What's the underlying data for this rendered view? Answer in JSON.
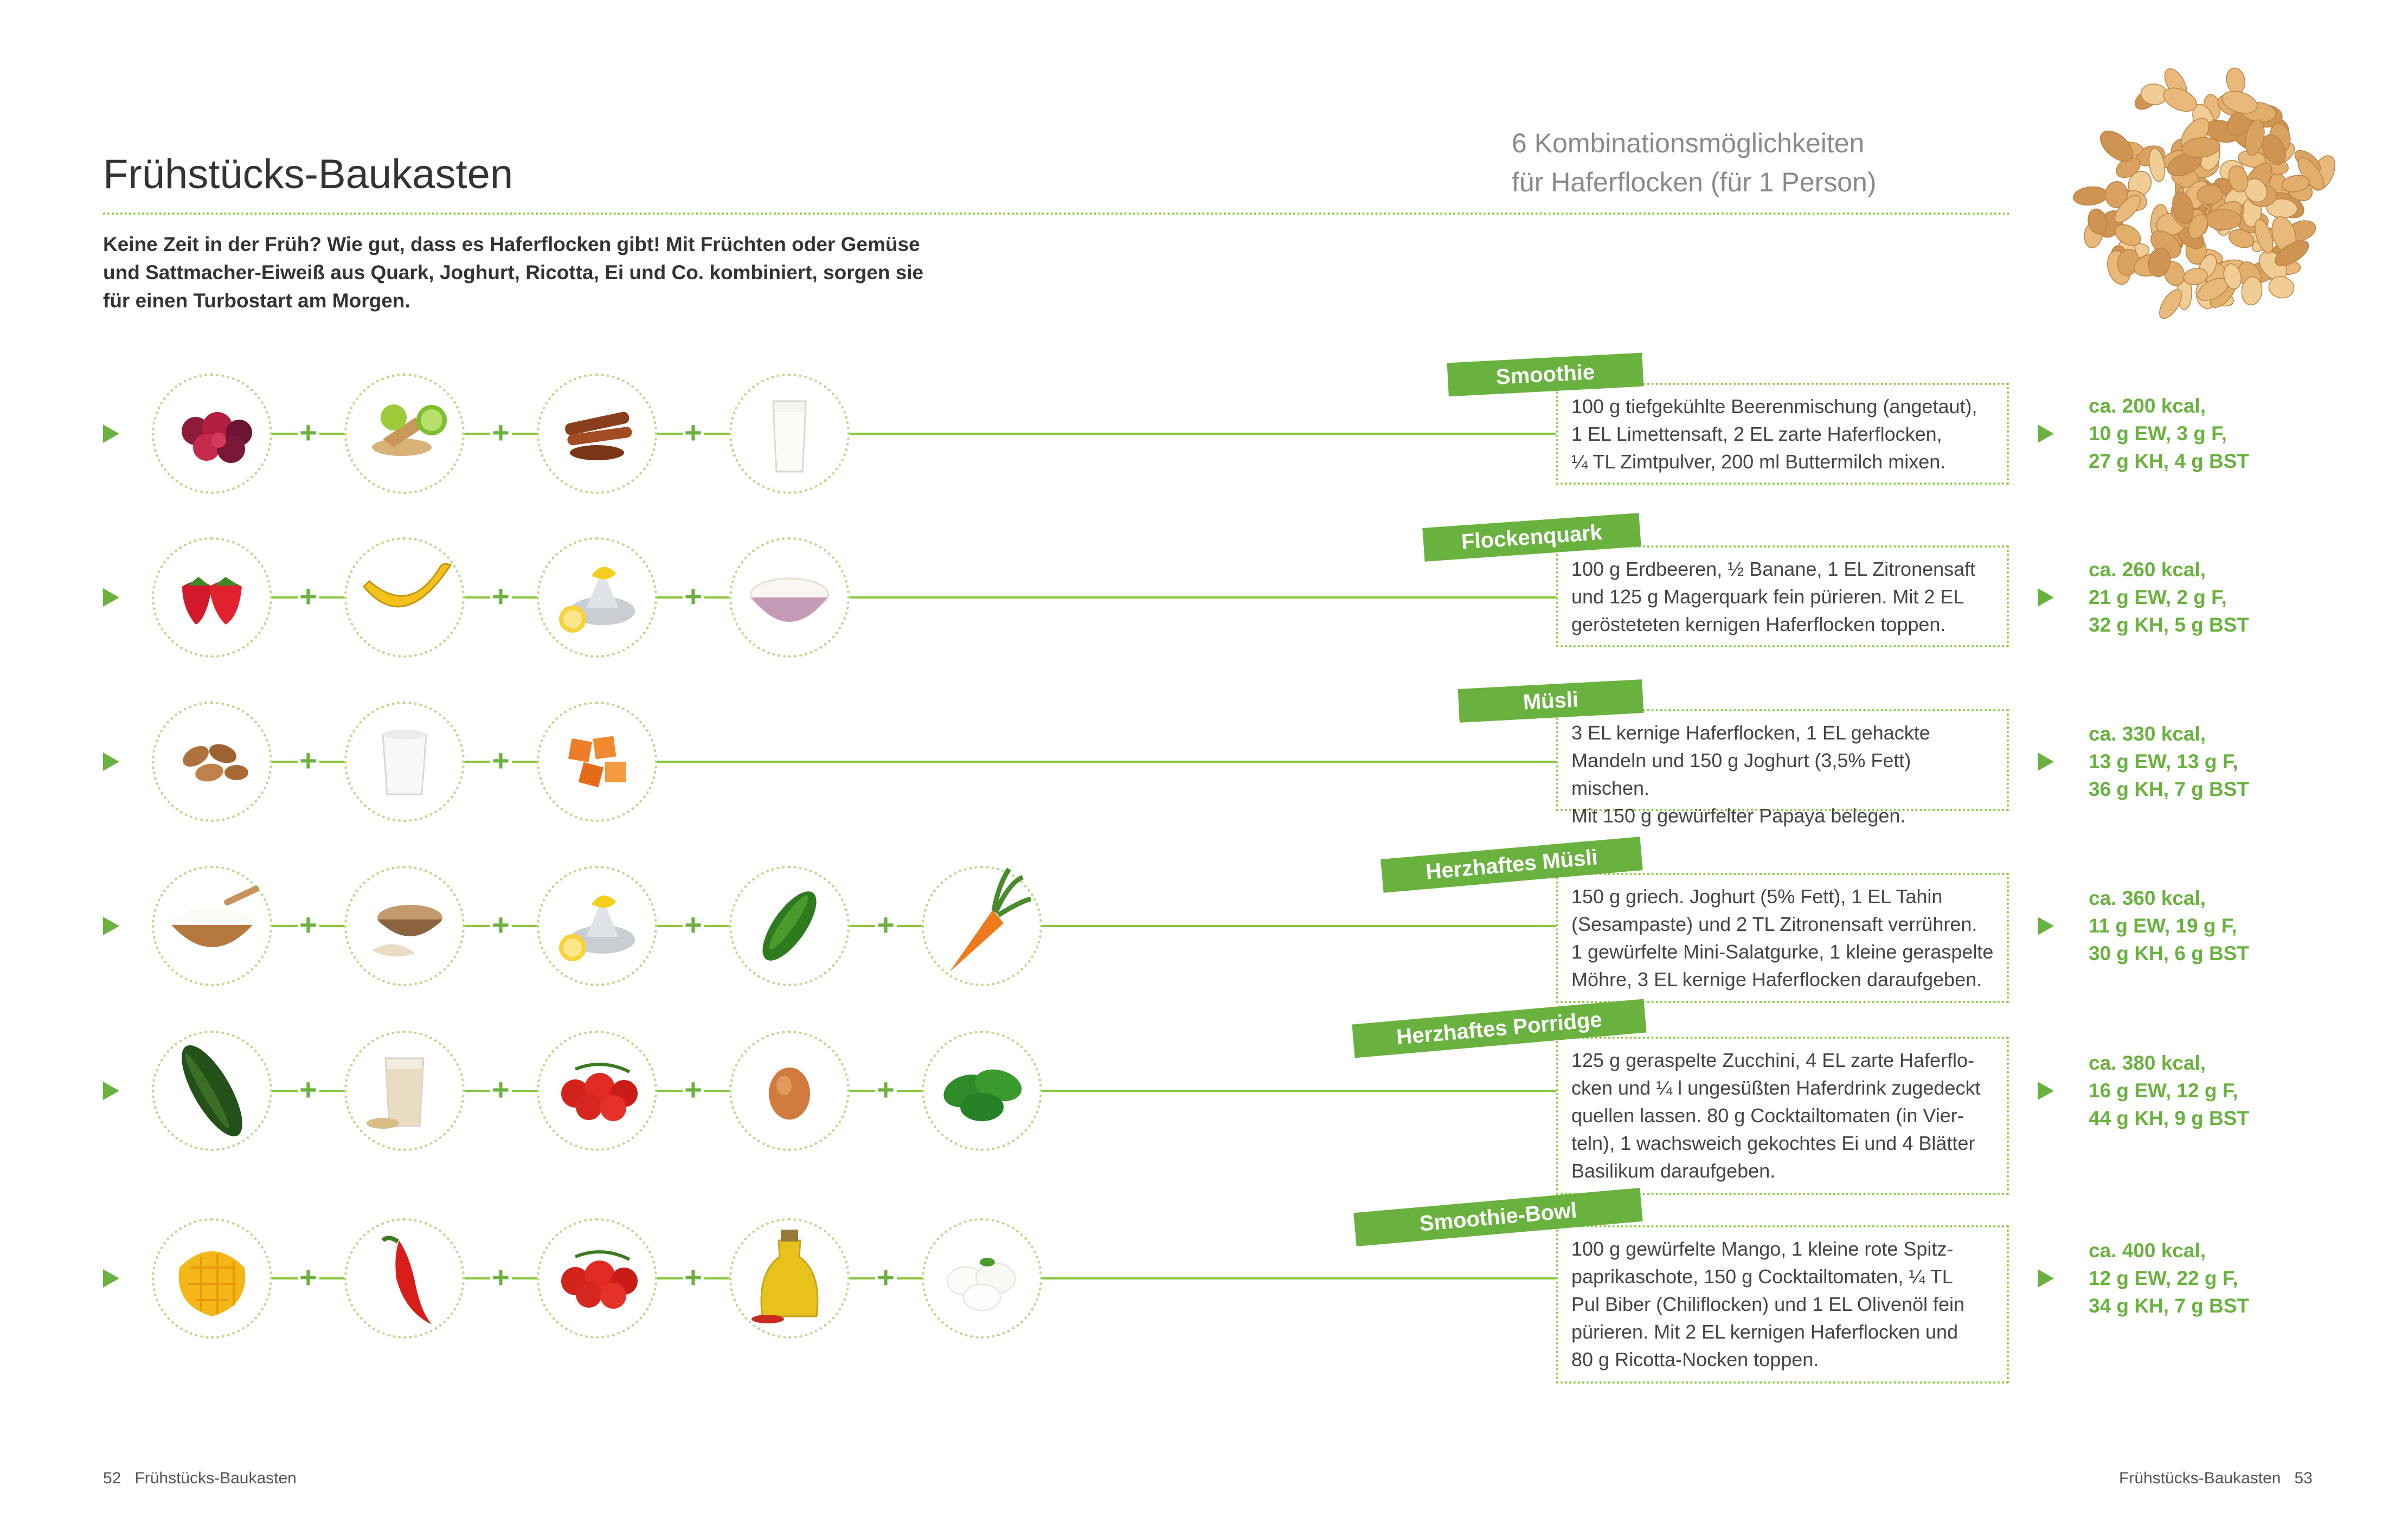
{
  "page": {
    "title": "Frühstücks-Baukasten",
    "subtitle_line1": "6 Kombinationsmöglichkeiten",
    "subtitle_line2": "für Haferflocken (für 1 Person)",
    "intro": "Keine Zeit in der Früh? Wie gut, dass es Haferflocken gibt! Mit Früchten oder Gemüse und Sattmacher-Eiweiß aus Quark, Joghurt, Ricotta, Ei und Co. kombiniert, sorgen sie für einen Turbostart am Morgen.",
    "footer_left_page": "52",
    "footer_left_label": "Frühstücks-Baukasten",
    "footer_right_label": "Frühstücks-Baukasten",
    "footer_right_page": "53"
  },
  "colors": {
    "accent": "#6ab23f",
    "text": "#333333",
    "muted": "#8a8a8a"
  },
  "recipes": [
    {
      "name": "Smoothie",
      "text": [
        "100 g tiefgekühlte Beerenmischung (angetaut),",
        "1 EL Limettensaft, 2 EL zarte Haferflocken,",
        "¼ TL Zimtpulver, 200 ml Buttermilch mixen."
      ],
      "nutrition": [
        "ca. 200 kcal,",
        "10 g EW, 3 g F,",
        "27 g KH, 4 g BST"
      ],
      "ingredients": [
        "berries-icon",
        "lime-juicer-icon",
        "cinnamon-icon",
        "buttermilk-glass-icon"
      ]
    },
    {
      "name": "Flockenquark",
      "text": [
        "100 g Erdbeeren, ½ Banane, 1 EL Zitronensaft",
        "und 125 g Magerquark fein pürieren. Mit 2 EL",
        "gerösteteten kernigen Haferflocken toppen."
      ],
      "nutrition": [
        "ca. 260 kcal,",
        "21 g EW, 2 g F,",
        "32 g KH, 5 g BST"
      ],
      "ingredients": [
        "strawberries-icon",
        "banana-icon",
        "lemon-squeezer-icon",
        "quark-bowl-icon"
      ]
    },
    {
      "name": "Müsli",
      "text": [
        "3 EL kernige Haferflocken, 1 EL gehackte",
        "Mandeln und 150 g Joghurt (3,5% Fett) mischen.",
        "Mit 150 g gewürfelter Papaya belegen."
      ],
      "nutrition": [
        "ca. 330 kcal,",
        "13 g EW, 13 g F,",
        "36 g KH, 7 g BST"
      ],
      "ingredients": [
        "almonds-icon",
        "yogurt-cup-icon",
        "papaya-cubes-icon"
      ]
    },
    {
      "name": "Herzhaftes Müsli",
      "text": [
        "150 g griech. Joghurt (5% Fett), 1 EL Tahin",
        "(Sesampaste) und 2 TL Zitronensaft verrühren.",
        "1 gewürfelte Mini-Salatgurke, 1 kleine geraspelte",
        "Möhre, 3 EL kernige Haferflocken daraufgeben."
      ],
      "nutrition": [
        "ca. 360 kcal,",
        "11 g EW, 19 g F,",
        "30 g KH, 6 g BST"
      ],
      "ingredients": [
        "greek-yogurt-icon",
        "tahini-icon",
        "lemon-squeezer-icon",
        "cucumber-icon",
        "carrot-icon"
      ]
    },
    {
      "name": "Herzhaftes Porridge",
      "text": [
        "125 g geraspelte Zucchini, 4 EL zarte Haferflo-",
        "cken und ¼ l ungesüßten Haferdrink zugedeckt",
        "quellen lassen. 80 g Cocktailtomaten (in Vier-",
        "teln), 1 wachsweich gekochtes Ei und 4 Blätter",
        "Basilikum daraufgeben."
      ],
      "nutrition": [
        "ca. 380 kcal,",
        "16 g EW, 12 g F,",
        "44 g KH, 9 g BST"
      ],
      "ingredients": [
        "zucchini-icon",
        "oat-drink-icon",
        "cherry-tomatoes-icon",
        "egg-icon",
        "basil-icon"
      ]
    },
    {
      "name": "Smoothie-Bowl",
      "text": [
        "100 g gewürfelte Mango, 1 kleine rote Spitz-",
        "paprikaschote, 150 g Cocktailtomaten, ¼ TL",
        "Pul Biber (Chiliflocken) und 1 EL Olivenöl fein",
        "pürieren. Mit 2 EL kernigen Haferflocken und",
        "80 g Ricotta-Nocken toppen."
      ],
      "nutrition": [
        "ca. 400 kcal,",
        "12 g EW, 22 g F,",
        "34 g KH, 7 g BST"
      ],
      "ingredients": [
        "mango-icon",
        "red-pepper-icon",
        "cherry-tomatoes-icon",
        "olive-oil-icon",
        "ricotta-icon"
      ]
    }
  ]
}
